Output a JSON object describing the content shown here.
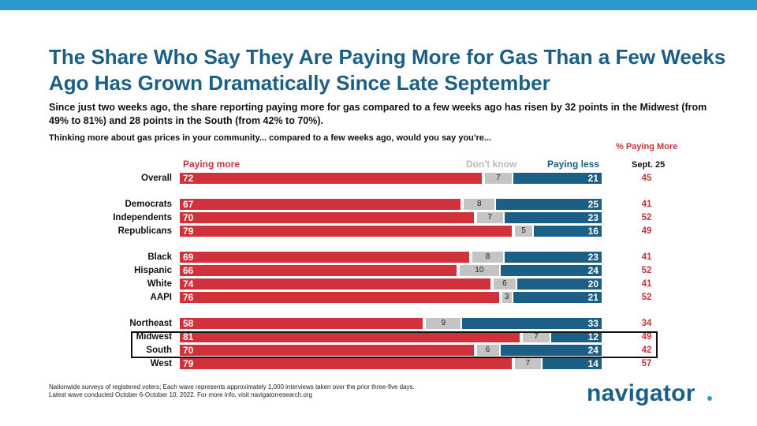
{
  "title": "The Share Who Say They Are Paying More for Gas Than a Few Weeks Ago Has Grown Dramatically Since Late September",
  "subtitle": "Since just two weeks ago, the share reporting paying more for gas compared to a few weeks ago has risen by 32 points in the Midwest (from 49% to 81%) and 28 points in the South (from 42% to 70%).",
  "question": "Thinking more about gas prices in your community... compared to a few weeks ago, would you say you're...",
  "pct_paying_more_header": "% Paying More",
  "sept_header": "Sept. 25",
  "legend": {
    "more": "Paying more",
    "dont_know": "Don't know",
    "less": "Paying less"
  },
  "colors": {
    "more": "#d0313b",
    "dont_know": "#c4c4c4",
    "less": "#1b5e86",
    "title": "#1b5e86",
    "accent": "#2b9ad3"
  },
  "chart_data": {
    "type": "bar",
    "orientation": "horizontal",
    "stacked": true,
    "series_names": [
      "Paying more",
      "Don't know",
      "Paying less"
    ],
    "xlim": [
      0,
      100
    ],
    "rows": [
      {
        "label": "Overall",
        "more": 72,
        "dk": 7,
        "less": 21,
        "sept": 45,
        "group": 0
      },
      {
        "label": "Democrats",
        "more": 67,
        "dk": 8,
        "less": 25,
        "sept": 41,
        "group": 1
      },
      {
        "label": "Independents",
        "more": 70,
        "dk": 7,
        "less": 23,
        "sept": 52,
        "group": 1
      },
      {
        "label": "Republicans",
        "more": 79,
        "dk": 5,
        "less": 16,
        "sept": 49,
        "group": 1
      },
      {
        "label": "Black",
        "more": 69,
        "dk": 8,
        "less": 23,
        "sept": 41,
        "group": 2
      },
      {
        "label": "Hispanic",
        "more": 66,
        "dk": 10,
        "less": 24,
        "sept": 52,
        "group": 2
      },
      {
        "label": "White",
        "more": 74,
        "dk": 6,
        "less": 20,
        "sept": 41,
        "group": 2
      },
      {
        "label": "AAPI",
        "more": 76,
        "dk": 3,
        "less": 21,
        "sept": 52,
        "group": 2
      },
      {
        "label": "Northeast",
        "more": 58,
        "dk": 9,
        "less": 33,
        "sept": 34,
        "group": 3
      },
      {
        "label": "Midwest",
        "more": 81,
        "dk": 7,
        "less": 12,
        "sept": 49,
        "group": 3,
        "highlight": true
      },
      {
        "label": "South",
        "more": 70,
        "dk": 6,
        "less": 24,
        "sept": 42,
        "group": 3,
        "highlight": true
      },
      {
        "label": "West",
        "more": 79,
        "dk": 7,
        "less": 14,
        "sept": 57,
        "group": 3
      }
    ]
  },
  "footnote": {
    "line1": "Nationwide surveys of registered voters; Each wave represents approximately 1,000 interviews taken over the prior three-five days.",
    "line2": "Latest wave conducted October 6-October 10, 2022. For more info, visit navigatorresearch.org"
  },
  "logo": "navigator"
}
